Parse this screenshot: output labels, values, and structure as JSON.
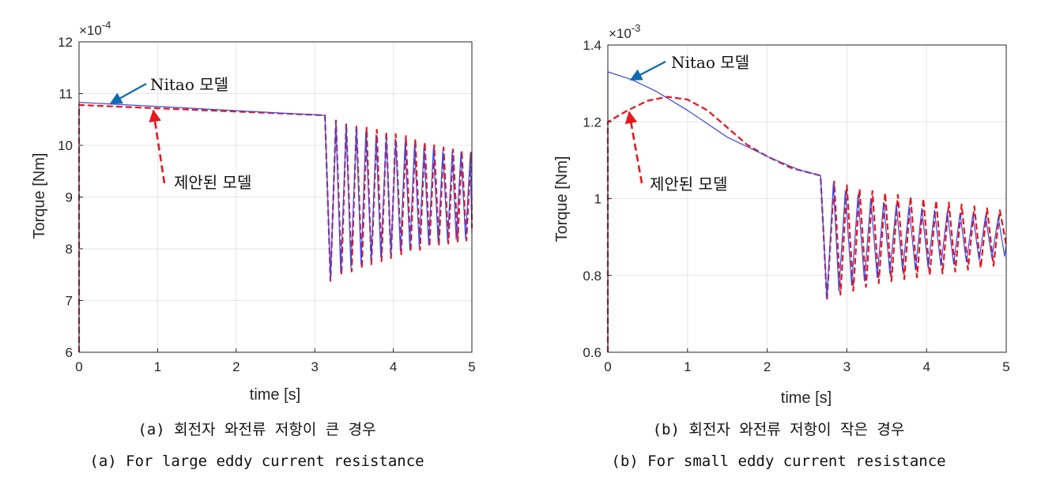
{
  "colors": {
    "nitao": "#3b48e8",
    "proposed": "#e8161e",
    "arrow_blue": "#0d6ab3",
    "grid": "#e6e6e6",
    "axis": "#262626"
  },
  "chart_data": [
    {
      "type": "line",
      "xlabel": "time [s]",
      "ylabel": "Torque [Nm]",
      "exponent": "×10",
      "exponent_power": "-4",
      "xlim": [
        0,
        5
      ],
      "ylim": [
        6,
        12
      ],
      "xticks": [
        "0",
        "1",
        "2",
        "3",
        "4",
        "5"
      ],
      "yticks": [
        "6",
        "7",
        "8",
        "9",
        "10",
        "11",
        "12"
      ],
      "grid": true,
      "annotations": [
        "Nitao 모델",
        "제안된 모델"
      ],
      "caption_ko": "(a) 회전자 와전류 저항이 큰 경우",
      "caption_en": "(a) For large eddy current resistance",
      "series": [
        {
          "name": "Nitao 모델",
          "style": "solid",
          "x": [
            0,
            3.13,
            3.2,
            3.27,
            3.33,
            3.4,
            3.46,
            3.53,
            3.59,
            3.65,
            3.72,
            3.78,
            3.84,
            3.91,
            3.97,
            4.03,
            4.09,
            4.15,
            4.21,
            4.27,
            4.33,
            4.39,
            4.45,
            4.51,
            4.57,
            4.63,
            4.69,
            4.75,
            4.8,
            4.86,
            4.92,
            4.98,
            5.0
          ],
          "y": [
            10.83,
            10.58,
            7.42,
            10.44,
            7.55,
            10.38,
            7.63,
            10.32,
            7.7,
            10.26,
            7.78,
            10.2,
            7.84,
            10.16,
            7.9,
            10.1,
            7.96,
            10.06,
            8.0,
            10.02,
            8.04,
            9.98,
            8.08,
            9.94,
            8.12,
            9.9,
            8.14,
            9.88,
            8.18,
            9.86,
            8.2,
            9.84,
            8.3
          ]
        },
        {
          "name": "제안된 모델",
          "style": "dashed",
          "x": [
            0,
            3.13,
            3.2,
            3.27,
            3.34,
            3.4,
            3.47,
            3.53,
            3.6,
            3.66,
            3.72,
            3.79,
            3.85,
            3.91,
            3.97,
            4.03,
            4.1,
            4.16,
            4.22,
            4.28,
            4.34,
            4.4,
            4.46,
            4.52,
            4.58,
            4.64,
            4.7,
            4.76,
            4.82,
            4.87,
            4.93,
            4.99,
            5.0
          ],
          "y": [
            10.78,
            10.58,
            7.38,
            10.48,
            7.5,
            10.42,
            7.56,
            10.38,
            7.62,
            10.34,
            7.7,
            10.3,
            7.76,
            10.26,
            7.82,
            10.22,
            7.88,
            10.18,
            7.94,
            10.12,
            7.98,
            10.06,
            8.04,
            10.0,
            8.08,
            9.96,
            8.1,
            9.92,
            8.14,
            9.9,
            8.16,
            9.86,
            8.4
          ]
        }
      ]
    },
    {
      "type": "line",
      "xlabel": "time [s]",
      "ylabel": "Torque [Nm]",
      "exponent": "×10",
      "exponent_power": "-3",
      "xlim": [
        0,
        5
      ],
      "ylim": [
        0.6,
        1.4
      ],
      "xticks": [
        "0",
        "1",
        "2",
        "3",
        "4",
        "5"
      ],
      "yticks": [
        "0.6",
        "0.8",
        "1",
        "1.2",
        "1.4"
      ],
      "grid": true,
      "annotations": [
        "Nitao 모델",
        "제안된 모델"
      ],
      "caption_ko": "(b) 회전자 와전류 저항이 작은 경우",
      "caption_en": "(b) For small eddy current resistance",
      "series": [
        {
          "name": "Nitao 모델",
          "style": "solid",
          "x": [
            0,
            0.3,
            0.6,
            1.0,
            1.5,
            2.0,
            2.4,
            2.67,
            2.75,
            2.83,
            2.9,
            2.98,
            3.06,
            3.14,
            3.22,
            3.3,
            3.38,
            3.46,
            3.54,
            3.62,
            3.7,
            3.78,
            3.86,
            3.94,
            4.02,
            4.1,
            4.18,
            4.26,
            4.34,
            4.42,
            4.5,
            4.58,
            4.66,
            4.74,
            4.82,
            4.9,
            4.98,
            5.0
          ],
          "y": [
            1.33,
            1.31,
            1.28,
            1.23,
            1.16,
            1.11,
            1.075,
            1.06,
            0.74,
            1.04,
            0.76,
            1.02,
            0.775,
            1.01,
            0.785,
            1.0,
            0.795,
            0.99,
            0.805,
            0.985,
            0.81,
            0.98,
            0.815,
            0.975,
            0.82,
            0.97,
            0.825,
            0.965,
            0.83,
            0.962,
            0.835,
            0.958,
            0.84,
            0.955,
            0.845,
            0.952,
            0.85,
            0.88
          ]
        },
        {
          "name": "제안된 모델",
          "style": "dashed",
          "x": [
            0,
            0.25,
            0.5,
            0.75,
            1.0,
            1.25,
            1.5,
            1.75,
            2.0,
            2.3,
            2.67,
            2.75,
            2.84,
            2.92,
            3.0,
            3.08,
            3.16,
            3.24,
            3.32,
            3.4,
            3.48,
            3.56,
            3.64,
            3.72,
            3.8,
            3.88,
            3.96,
            4.04,
            4.12,
            4.2,
            4.28,
            4.36,
            4.44,
            4.52,
            4.6,
            4.68,
            4.76,
            4.84,
            4.92,
            5.0
          ],
          "y": [
            1.2,
            1.23,
            1.255,
            1.265,
            1.258,
            1.23,
            1.185,
            1.14,
            1.11,
            1.08,
            1.06,
            0.735,
            1.045,
            0.75,
            1.035,
            0.76,
            1.025,
            0.77,
            1.02,
            0.78,
            1.015,
            0.785,
            1.01,
            0.79,
            1.005,
            0.795,
            1.0,
            0.8,
            0.995,
            0.805,
            0.99,
            0.81,
            0.985,
            0.815,
            0.98,
            0.82,
            0.975,
            0.825,
            0.97,
            0.88
          ]
        }
      ]
    }
  ]
}
